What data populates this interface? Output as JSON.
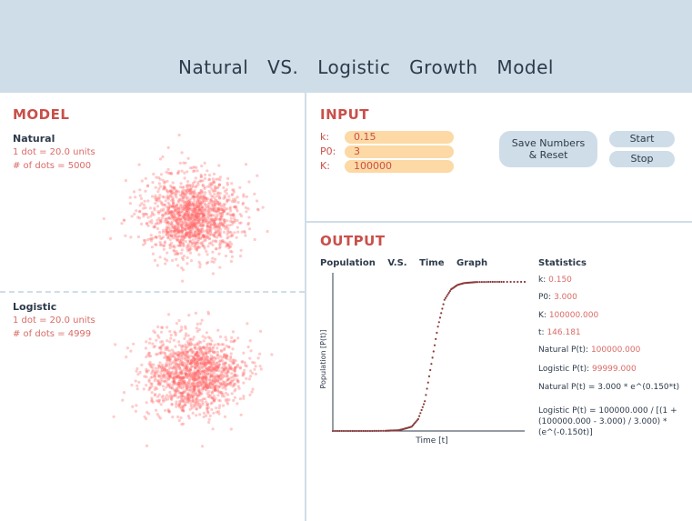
{
  "header": {
    "title": "Natural VS. Logistic Growth Model"
  },
  "model": {
    "title": "MODEL",
    "natural": {
      "title": "Natural",
      "unit": "1 dot = 20.0 units",
      "dots": "# of dots = 5000"
    },
    "logistic": {
      "title": "Logistic",
      "unit": "1 dot = 20.0 units",
      "dots": "# of dots = 4999"
    }
  },
  "input": {
    "title": "INPUT",
    "k_label": "k:",
    "k_value": "0.15",
    "p0_label": "P0:",
    "p0_value": "3",
    "K_label": "K:",
    "K_value": "100000",
    "save_line1": "Save Numbers",
    "save_line2": "& Reset",
    "start_label": "Start",
    "stop_label": "Stop"
  },
  "output": {
    "title": "OUTPUT",
    "graph_title": "Population V.S. Time Graph",
    "xlabel": "Time [t]",
    "ylabel": "Population [P(t)]",
    "stats": {
      "title": "Statistics",
      "k_label": "k:",
      "k_value": "0.150",
      "p0_label": "P0:",
      "p0_value": "3.000",
      "K_label": "K:",
      "K_value": "100000.000",
      "t_label": "t:",
      "t_value": "146.181",
      "natural_label": "Natural P(t):",
      "natural_value": "100000.000",
      "logistic_label": "Logistic P(t):",
      "logistic_value": "99999.000",
      "natural_formula": "Natural P(t) = 3.000 * e^(0.150*t)",
      "logistic_formula": "Logistic P(t) = 100000.000 / [(1 + (100000.000 - 3.000) / 3.000) * (e^(-0.150t)]"
    }
  },
  "colors": {
    "accent": "#c9504a",
    "dot": "#ff6b6b",
    "panel": "#cfdde8",
    "input": "#fcd9a5"
  },
  "chart_data": {
    "type": "scatter",
    "xlabel": "Time [t]",
    "ylabel": "Population [P(t)]",
    "x": [
      0,
      10,
      20,
      30,
      40,
      45,
      50,
      55,
      60,
      65,
      70,
      75,
      80,
      85,
      90,
      95,
      100,
      105,
      110,
      120,
      130,
      146
    ],
    "y": [
      0,
      0,
      0,
      10,
      150,
      300,
      500,
      1600,
      2900,
      8000,
      20000,
      45000,
      70000,
      88000,
      95000,
      98000,
      99200,
      99600,
      99900,
      100000,
      100000,
      100000
    ],
    "xlim": [
      0,
      146
    ],
    "ylim": [
      0,
      100000
    ]
  }
}
